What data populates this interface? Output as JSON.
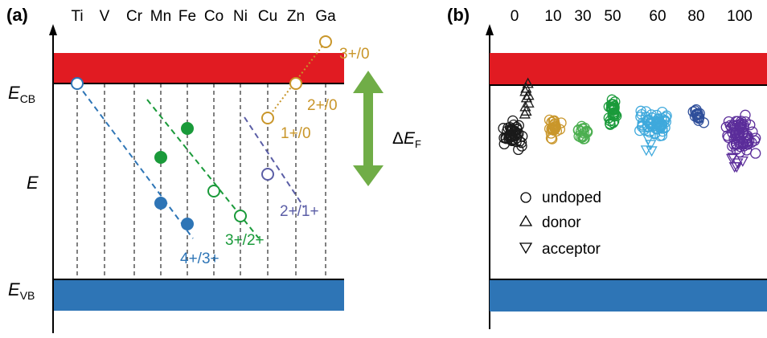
{
  "panel_a": {
    "tag": "(a)",
    "elements": [
      "Ti",
      "V",
      "Cr",
      "Mn",
      "Fe",
      "Co",
      "Ni",
      "Cu",
      "Zn",
      "Ga"
    ],
    "ecb_label": {
      "main": "E",
      "sub": "CB"
    },
    "evb_label": {
      "main": "E",
      "sub": "VB"
    },
    "e_label": "E",
    "delta_ef": {
      "prefix": "Δ",
      "main": "E",
      "sub": "F"
    },
    "transitions": [
      {
        "label": "4+/3+",
        "color": "#2e75b6"
      },
      {
        "label": "3+/2+",
        "color": "#1a9a3a"
      },
      {
        "label": "2+/1+",
        "color": "#5b5ea6"
      },
      {
        "label": "1+/0",
        "color": "#c9962a"
      },
      {
        "label": "2+/0",
        "color": "#c9962a"
      },
      {
        "label": "3+/0",
        "color": "#c9962a"
      }
    ],
    "colors": {
      "cb": "#e11b22",
      "vb": "#2e75b6",
      "arrow": "#70ad47"
    }
  },
  "panel_b": {
    "tag": "(b)",
    "x_ticks": [
      "0",
      "10",
      "30",
      "50",
      "60",
      "80",
      "100"
    ],
    "legend": [
      {
        "symbol": "○",
        "label": "undoped"
      },
      {
        "symbol": "△",
        "label": "donor"
      },
      {
        "symbol": "▽",
        "label": "acceptor"
      }
    ],
    "cluster_colors": [
      "#1a1a1a",
      "#c9962a",
      "#4caf50",
      "#1a9a3a",
      "#3fa9dc",
      "#2e4e9a",
      "#5b2d9a"
    ]
  }
}
